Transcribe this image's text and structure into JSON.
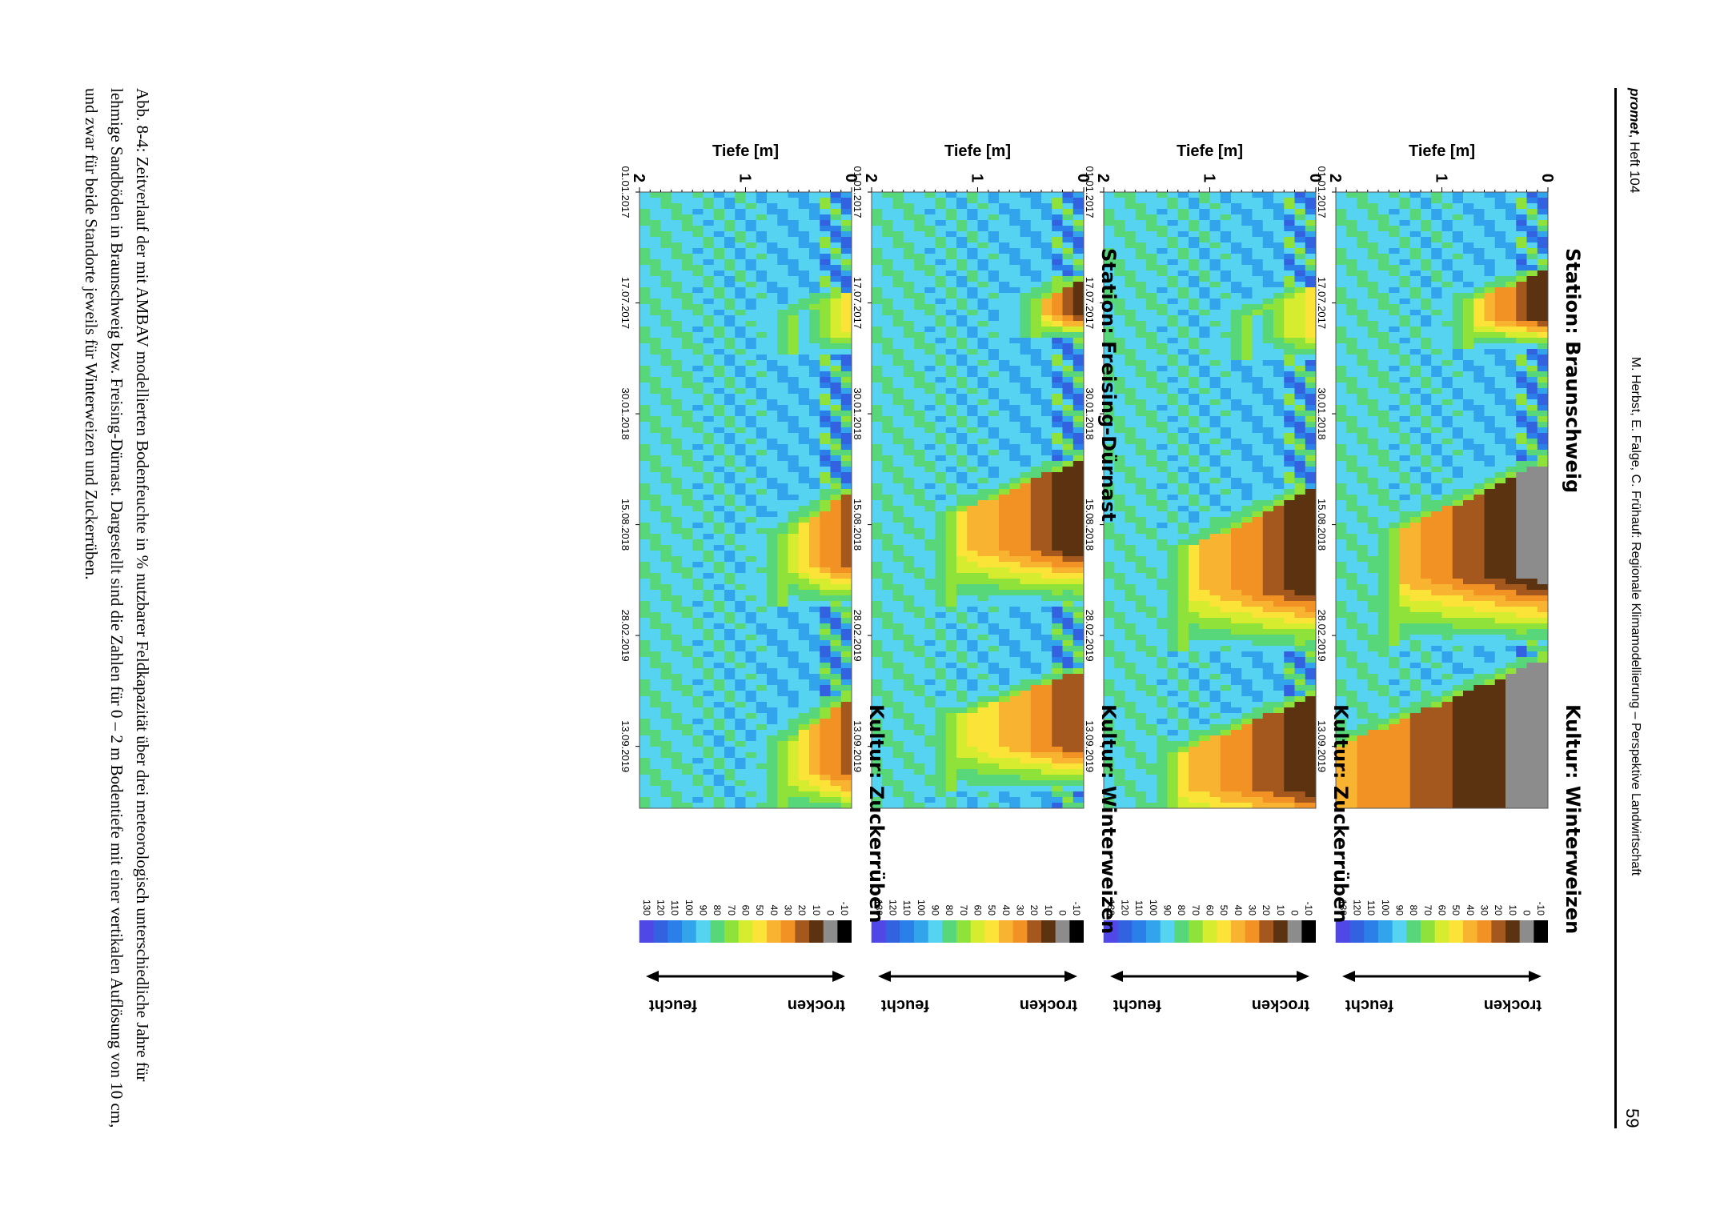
{
  "header": {
    "journal": "promet",
    "issue": ", Heft 104",
    "running_title": "M. Herbst, E. Falge, C. Frühauf: Regionale Klimamodellierung – Perspektive Landwirtschaft",
    "page_number": "59"
  },
  "colorbar": {
    "levels": [
      "-10",
      "0",
      "10",
      "20",
      "30",
      "40",
      "50",
      "60",
      "70",
      "80",
      "90",
      "100",
      "110",
      "120",
      "130"
    ],
    "colors": [
      "#000000",
      "#8c8c8c",
      "#5c3310",
      "#a5581e",
      "#f29225",
      "#f8b331",
      "#fbe337",
      "#d6ec2e",
      "#8ee23a",
      "#58d67a",
      "#56d3f0",
      "#31a4ec",
      "#2b7fe8",
      "#3262e0",
      "#5048e6"
    ],
    "label_dry": "trocken",
    "label_wet": "feucht"
  },
  "axis_title_depth": "Tiefe [m]",
  "depth_ticks": [
    "0",
    "1",
    "2"
  ],
  "date_ticks": [
    "01.01.2017",
    "17.07.2017",
    "30.01.2018",
    "15.08.2018",
    "28.02.2019",
    "13.09.2019"
  ],
  "panels": [
    {
      "station": "Station: Braunschweig",
      "crop": "Kultur: Winterweizen"
    },
    {
      "station": "",
      "crop": "Kultur: Zuckerrüben"
    },
    {
      "station": "Station: Freising-Dürnast",
      "crop": "Kultur: Winterweizen"
    },
    {
      "station": "",
      "crop": "Kultur: Zuckerrüben"
    }
  ],
  "caption": "Abb. 8-4: Zeitverlauf der mit AMBAV modellierten Bodenfeuchte in % nutzbarer Feldkapazität über drei meteorologisch unterschiedliche Jahre für lehmige Sandböden in Braunschweig bzw. Freising-Dürnast. Dargestellt sind die Zahlen für 0 – 2 m Bodentiefe mit einer vertikalen Auflösung von 10 cm, und zwar für beide Standorte jeweils für Winterweizen und Zuckerrüben.",
  "chart_data": [
    {
      "type": "heatmap",
      "title": "Station: Braunschweig — Kultur: Winterweizen",
      "xlabel": "",
      "ylabel": "Tiefe [m]",
      "x_range": [
        "01.01.2017",
        "31.12.2019"
      ],
      "y_range": [
        0,
        2
      ],
      "value_unit": "% nutzbare Feldkapazität",
      "dry_events": [
        {
          "start": "2017-05-20",
          "end": "2017-08-15",
          "max_depth": 0.7,
          "min_value": 10
        },
        {
          "start": "2018-04-25",
          "end": "2018-11-15",
          "max_depth": 1.4,
          "min_value": 0
        },
        {
          "start": "2019-04-10",
          "end": "2019-12-31",
          "max_depth": 2.0,
          "min_value": 0
        }
      ]
    },
    {
      "type": "heatmap",
      "title": "Kultur: Zuckerrüben",
      "xlabel": "",
      "ylabel": "Tiefe [m]",
      "x_range": [
        "01.01.2017",
        "31.12.2019"
      ],
      "y_range": [
        0,
        2
      ],
      "value_unit": "% nutzbare Feldkapazität",
      "dry_events": [
        {
          "start": "2017-06-20",
          "end": "2017-09-10",
          "max_depth": 0.6,
          "min_value": 50
        },
        {
          "start": "2018-06-10",
          "end": "2018-12-10",
          "max_depth": 1.2,
          "min_value": 10
        },
        {
          "start": "2019-06-15",
          "end": "2019-11-30",
          "max_depth": 1.3,
          "min_value": 10
        }
      ]
    },
    {
      "type": "heatmap",
      "title": "Station: Freising-Dürnast — Kultur: Winterweizen",
      "xlabel": "",
      "ylabel": "Tiefe [m]",
      "x_range": [
        "01.01.2017",
        "31.12.2019"
      ],
      "y_range": [
        0,
        2
      ],
      "value_unit": "% nutzbare Feldkapazität",
      "dry_events": [
        {
          "start": "2017-06-01",
          "end": "2017-08-10",
          "max_depth": 0.4,
          "min_value": 10
        },
        {
          "start": "2018-04-20",
          "end": "2018-09-30",
          "max_depth": 1.2,
          "min_value": 10
        },
        {
          "start": "2019-05-01",
          "end": "2019-09-15",
          "max_depth": 1.2,
          "min_value": 20
        }
      ]
    },
    {
      "type": "heatmap",
      "title": "Kultur: Zuckerrüben",
      "xlabel": "",
      "ylabel": "Tiefe [m]",
      "x_range": [
        "01.01.2017",
        "31.12.2019"
      ],
      "y_range": [
        0,
        2
      ],
      "value_unit": "% nutzbare Feldkapazität",
      "dry_events": [
        {
          "start": "2017-06-25",
          "end": "2017-09-05",
          "max_depth": 0.5,
          "min_value": 50
        },
        {
          "start": "2018-06-15",
          "end": "2018-10-25",
          "max_depth": 0.6,
          "min_value": 20
        },
        {
          "start": "2019-06-20",
          "end": "2019-10-31",
          "max_depth": 0.6,
          "min_value": 20
        }
      ]
    }
  ]
}
